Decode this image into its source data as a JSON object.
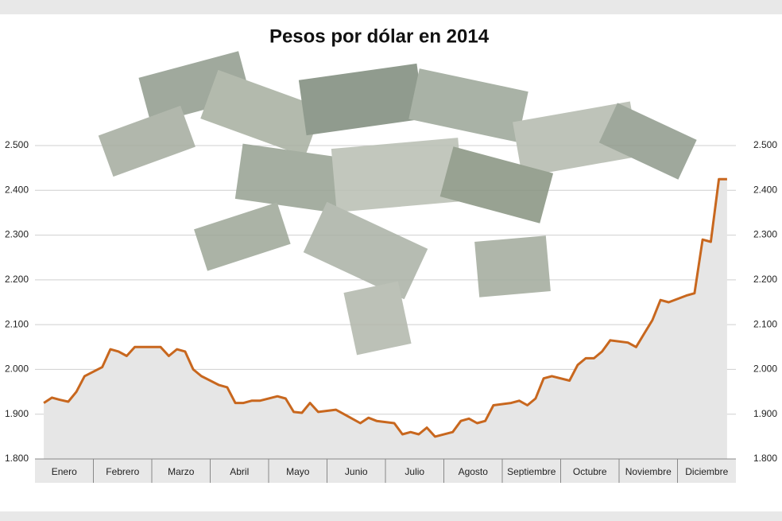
{
  "chart_data": {
    "type": "line",
    "title": "Pesos por dólar en 2014",
    "categories": [
      "Enero",
      "Febrero",
      "Marzo",
      "Abril",
      "Mayo",
      "Junio",
      "Julio",
      "Agosto",
      "Septiembre",
      "Octubre",
      "Noviembre",
      "Diciembre"
    ],
    "values": [
      [
        1925,
        1937,
        1932,
        1928,
        1950,
        1985
      ],
      [
        2005,
        2045,
        2040,
        2030,
        2050,
        2050
      ],
      [
        2050,
        2030,
        2045,
        2040,
        2000,
        1985
      ],
      [
        1965,
        1960,
        1925,
        1925,
        1930,
        1930
      ],
      [
        1940,
        1935,
        1905,
        1903,
        1925,
        1905
      ],
      [
        1910,
        1900,
        1890,
        1880,
        1892,
        1885
      ],
      [
        1880,
        1855,
        1860,
        1855,
        1870,
        1850
      ],
      [
        1860,
        1885,
        1890,
        1880,
        1885,
        1920
      ],
      [
        1925,
        1930,
        1920,
        1935,
        1980,
        1985
      ],
      [
        1975,
        2010,
        2025,
        2025,
        2040,
        2065
      ],
      [
        2060,
        2050,
        2080,
        2110,
        2155,
        2150
      ],
      [
        2165,
        2170,
        2290,
        2285,
        2425,
        2425
      ]
    ],
    "color": "#c8671e",
    "area_color": "#e6e6e6",
    "ylim": [
      1800,
      2500
    ],
    "yticks": [
      {
        "value": 1800,
        "label": "1.800"
      },
      {
        "value": 1900,
        "label": "1.900"
      },
      {
        "value": 2000,
        "label": "2.000"
      },
      {
        "value": 2100,
        "label": "2.100"
      },
      {
        "value": 2200,
        "label": "2.200"
      },
      {
        "value": 2300,
        "label": "2.300"
      },
      {
        "value": 2400,
        "label": "2.400"
      },
      {
        "value": 2500,
        "label": "2.500"
      }
    ],
    "grid": true
  }
}
